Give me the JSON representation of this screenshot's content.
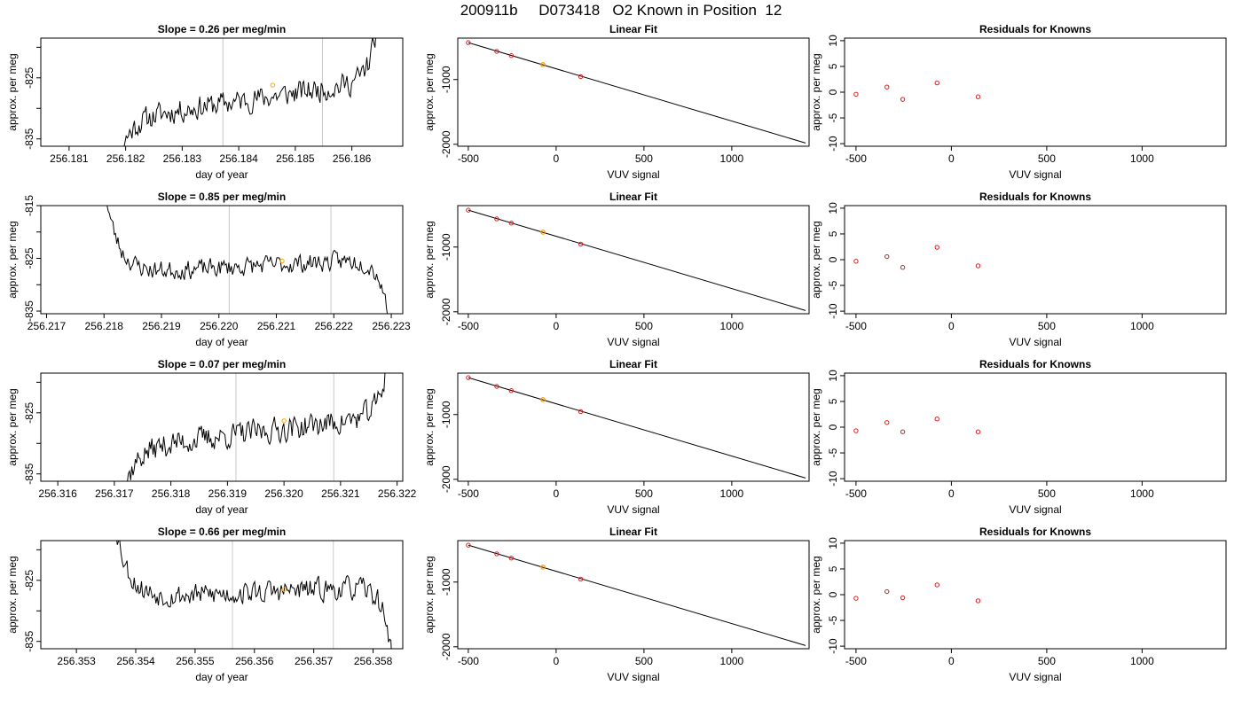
{
  "figure": {
    "title": "200911b     D073418   O2 Known in Position  12"
  },
  "colors": {
    "line": "#000000",
    "frame": "#000000",
    "vline": "#c8c8c8",
    "highlight": "#ffa500",
    "residual": "#d62020"
  },
  "chart_data": [
    {
      "type": "line",
      "panel": "drift",
      "title": "Slope =  0.26  per meg/min",
      "xlabel": "day of year",
      "ylabel": "approx. per meg",
      "xlim": [
        256.1805,
        256.1869
      ],
      "ylim": [
        -836.2,
        -818.5
      ],
      "xticks": [
        256.181,
        256.182,
        256.183,
        256.184,
        256.185,
        256.186
      ],
      "xtick_labels": [
        "256.181",
        "256.182",
        "256.183",
        "256.184",
        "256.185",
        "256.186"
      ],
      "yticks": [
        -835,
        -830,
        -825,
        -820
      ],
      "ytick_labels": [
        "-835",
        "",
        "-825",
        ""
      ],
      "vlines": [
        256.18372,
        256.18548
      ],
      "series_start": 256.1817,
      "series_end": 256.18645,
      "start_y": -846,
      "end_y": -816,
      "level_from": -832,
      "level_to": -825.5,
      "amplitude": 2.2,
      "highlight": {
        "x": 256.1846,
        "y": -826.2
      },
      "seed": 11
    },
    {
      "type": "scatter",
      "panel": "fit",
      "title": "Linear Fit",
      "xlabel": "VUV signal",
      "ylabel": "approx. per meg",
      "xlim": [
        -560,
        1440
      ],
      "ylim": [
        -2030,
        -360
      ],
      "xticks": [
        -500,
        0,
        500,
        1000
      ],
      "xtick_labels": [
        "-500",
        "0",
        "500",
        "1000"
      ],
      "yticks": [
        -1000,
        -2000
      ],
      "ytick_labels": [
        "-1000",
        "-2000"
      ],
      "points": [
        {
          "x": -500,
          "y": -430
        },
        {
          "x": -338,
          "y": -565
        },
        {
          "x": -255,
          "y": -630
        },
        {
          "x": -75,
          "y": -770
        },
        {
          "x": 140,
          "y": -955
        }
      ],
      "highlight": {
        "x": -75,
        "y": -770
      },
      "line": [
        {
          "x": -500,
          "y": -430
        },
        {
          "x": 1420,
          "y": -1980
        }
      ]
    },
    {
      "type": "scatter",
      "panel": "resid",
      "title": "Residuals for Knowns",
      "xlabel": "VUV signal",
      "ylabel": "approx. per meg",
      "xlim": [
        -560,
        1440
      ],
      "ylim": [
        -10.5,
        10.5
      ],
      "xticks": [
        -500,
        0,
        500,
        1000
      ],
      "xtick_labels": [
        "-500",
        "0",
        "500",
        "1000"
      ],
      "yticks": [
        -10,
        -5,
        0,
        5,
        10
      ],
      "ytick_labels": [
        "-10",
        "-5",
        "0",
        "5",
        "10"
      ],
      "points": [
        {
          "x": -500,
          "y": -0.4
        },
        {
          "x": -338,
          "y": 1.0
        },
        {
          "x": -255,
          "y": -1.4
        },
        {
          "x": -75,
          "y": 1.8
        },
        {
          "x": 140,
          "y": -0.9
        }
      ]
    },
    {
      "type": "line",
      "panel": "drift",
      "title": "Slope =  0.85  per meg/min",
      "xlabel": "day of year",
      "ylabel": "approx. per meg",
      "xlim": [
        256.2169,
        256.2232
      ],
      "ylim": [
        -835.5,
        -815
      ],
      "xticks": [
        256.217,
        256.218,
        256.219,
        256.22,
        256.221,
        256.222,
        256.223
      ],
      "xtick_labels": [
        "256.217",
        "256.218",
        "256.219",
        "256.220",
        "256.221",
        "256.222",
        "256.223"
      ],
      "yticks": [
        -835,
        -830,
        -825,
        -820,
        -815
      ],
      "ytick_labels": [
        "-835",
        "",
        "-825",
        "",
        "-815"
      ],
      "vlines": [
        256.22018,
        256.22195
      ],
      "series_start": 256.21805,
      "series_end": 256.22298,
      "start_y": -814,
      "end_y": -839,
      "level_from": -828,
      "level_to": -825,
      "amplitude": 2.0,
      "highlight": {
        "x": 256.2211,
        "y": -825.5
      },
      "seed": 23
    },
    {
      "type": "scatter",
      "panel": "fit",
      "title": "Linear Fit",
      "xlabel": "VUV signal",
      "ylabel": "approx. per meg",
      "xlim": [
        -560,
        1440
      ],
      "ylim": [
        -2030,
        -360
      ],
      "xticks": [
        -500,
        0,
        500,
        1000
      ],
      "xtick_labels": [
        "-500",
        "0",
        "500",
        "1000"
      ],
      "yticks": [
        -1000,
        -2000
      ],
      "ytick_labels": [
        "-1000",
        "-2000"
      ],
      "points": [
        {
          "x": -500,
          "y": -430
        },
        {
          "x": -338,
          "y": -565
        },
        {
          "x": -255,
          "y": -630
        },
        {
          "x": -75,
          "y": -770
        },
        {
          "x": 140,
          "y": -955
        }
      ],
      "highlight": {
        "x": -75,
        "y": -770
      },
      "line": [
        {
          "x": -500,
          "y": -430
        },
        {
          "x": 1420,
          "y": -1980
        }
      ]
    },
    {
      "type": "scatter",
      "panel": "resid",
      "title": "Residuals for Knowns",
      "xlabel": "VUV signal",
      "ylabel": "approx. per meg",
      "xlim": [
        -560,
        1440
      ],
      "ylim": [
        -10.5,
        10.5
      ],
      "xticks": [
        -500,
        0,
        500,
        1000
      ],
      "xtick_labels": [
        "-500",
        "0",
        "500",
        "1000"
      ],
      "yticks": [
        -10,
        -5,
        0,
        5,
        10
      ],
      "ytick_labels": [
        "-10",
        "-5",
        "0",
        "5",
        "10"
      ],
      "points": [
        {
          "x": -500,
          "y": -0.3
        },
        {
          "x": -338,
          "y": 0.6
        },
        {
          "x": -255,
          "y": -1.5
        },
        {
          "x": -75,
          "y": 2.4
        },
        {
          "x": 140,
          "y": -1.2
        }
      ]
    },
    {
      "type": "line",
      "panel": "drift",
      "title": "Slope =  0.07  per meg/min",
      "xlabel": "day of year",
      "ylabel": "approx. per meg",
      "xlim": [
        256.3157,
        256.3221
      ],
      "ylim": [
        -836.2,
        -818.5
      ],
      "xticks": [
        256.316,
        256.317,
        256.318,
        256.319,
        256.32,
        256.321,
        256.322
      ],
      "xtick_labels": [
        "256.316",
        "256.317",
        "256.318",
        "256.319",
        "256.320",
        "256.321",
        "256.322"
      ],
      "yticks": [
        -835,
        -830,
        -825,
        -820
      ],
      "ytick_labels": [
        "-835",
        "",
        "-825",
        ""
      ],
      "vlines": [
        256.31915,
        256.32088
      ],
      "series_start": 256.31706,
      "series_end": 256.32185,
      "start_y": -842,
      "end_y": -815,
      "level_from": -831,
      "level_to": -825.5,
      "amplitude": 2.3,
      "highlight": {
        "x": 256.32,
        "y": -826.3
      },
      "seed": 37
    },
    {
      "type": "scatter",
      "panel": "fit",
      "title": "Linear Fit",
      "xlabel": "VUV signal",
      "ylabel": "approx. per meg",
      "xlim": [
        -560,
        1440
      ],
      "ylim": [
        -2030,
        -360
      ],
      "xticks": [
        -500,
        0,
        500,
        1000
      ],
      "xtick_labels": [
        "-500",
        "0",
        "500",
        "1000"
      ],
      "yticks": [
        -1000,
        -2000
      ],
      "ytick_labels": [
        "-1000",
        "-2000"
      ],
      "points": [
        {
          "x": -500,
          "y": -430
        },
        {
          "x": -338,
          "y": -565
        },
        {
          "x": -255,
          "y": -630
        },
        {
          "x": -75,
          "y": -770
        },
        {
          "x": 140,
          "y": -955
        }
      ],
      "highlight": {
        "x": -75,
        "y": -770
      },
      "line": [
        {
          "x": -500,
          "y": -430
        },
        {
          "x": 1420,
          "y": -1980
        }
      ]
    },
    {
      "type": "scatter",
      "panel": "resid",
      "title": "Residuals for Knowns",
      "xlabel": "VUV signal",
      "ylabel": "approx. per meg",
      "xlim": [
        -560,
        1440
      ],
      "ylim": [
        -10.5,
        10.5
      ],
      "xticks": [
        -500,
        0,
        500,
        1000
      ],
      "xtick_labels": [
        "-500",
        "0",
        "500",
        "1000"
      ],
      "yticks": [
        -10,
        -5,
        0,
        5,
        10
      ],
      "ytick_labels": [
        "-10",
        "-5",
        "0",
        "5",
        "10"
      ],
      "points": [
        {
          "x": -500,
          "y": -0.7
        },
        {
          "x": -338,
          "y": 0.9
        },
        {
          "x": -255,
          "y": -0.9
        },
        {
          "x": -75,
          "y": 1.6
        },
        {
          "x": 140,
          "y": -0.9
        }
      ]
    },
    {
      "type": "line",
      "panel": "drift",
      "title": "Slope =  0.66  per meg/min",
      "xlabel": "day of year",
      "ylabel": "approx. per meg",
      "xlim": [
        256.3524,
        256.3585
      ],
      "ylim": [
        -836.2,
        -818.5
      ],
      "xticks": [
        256.353,
        256.354,
        256.355,
        256.356,
        256.357,
        256.358
      ],
      "xtick_labels": [
        "256.353",
        "256.354",
        "256.355",
        "256.356",
        "256.357",
        "256.358"
      ],
      "yticks": [
        -835,
        -830,
        -825,
        -820
      ],
      "ytick_labels": [
        "-835",
        "",
        "-825",
        ""
      ],
      "vlines": [
        256.35563,
        256.35733
      ],
      "series_start": 256.35365,
      "series_end": 256.35832,
      "start_y": -815,
      "end_y": -838,
      "level_from": -828,
      "level_to": -826,
      "amplitude": 2.1,
      "highlight": {
        "x": 256.3565,
        "y": -826.5
      },
      "seed": 53
    },
    {
      "type": "scatter",
      "panel": "fit",
      "title": "Linear Fit",
      "xlabel": "VUV signal",
      "ylabel": "approx. per meg",
      "xlim": [
        -560,
        1440
      ],
      "ylim": [
        -2030,
        -360
      ],
      "xticks": [
        -500,
        0,
        500,
        1000
      ],
      "xtick_labels": [
        "-500",
        "0",
        "500",
        "1000"
      ],
      "yticks": [
        -1000,
        -2000
      ],
      "ytick_labels": [
        "-1000",
        "-2000"
      ],
      "points": [
        {
          "x": -500,
          "y": -430
        },
        {
          "x": -338,
          "y": -565
        },
        {
          "x": -255,
          "y": -630
        },
        {
          "x": -75,
          "y": -770
        },
        {
          "x": 140,
          "y": -955
        }
      ],
      "highlight": {
        "x": -75,
        "y": -770
      },
      "line": [
        {
          "x": -500,
          "y": -430
        },
        {
          "x": 1420,
          "y": -1980
        }
      ]
    },
    {
      "type": "scatter",
      "panel": "resid",
      "title": "Residuals for Knowns",
      "xlabel": "VUV signal",
      "ylabel": "approx. per meg",
      "xlim": [
        -560,
        1440
      ],
      "ylim": [
        -10.5,
        10.5
      ],
      "xticks": [
        -500,
        0,
        500,
        1000
      ],
      "xtick_labels": [
        "-500",
        "0",
        "500",
        "1000"
      ],
      "yticks": [
        -10,
        -5,
        0,
        5,
        10
      ],
      "ytick_labels": [
        "-10",
        "-5",
        "0",
        "5",
        "10"
      ],
      "points": [
        {
          "x": -500,
          "y": -0.7
        },
        {
          "x": -338,
          "y": 0.6
        },
        {
          "x": -255,
          "y": -0.6
        },
        {
          "x": -75,
          "y": 1.9
        },
        {
          "x": 140,
          "y": -1.2
        }
      ]
    }
  ]
}
